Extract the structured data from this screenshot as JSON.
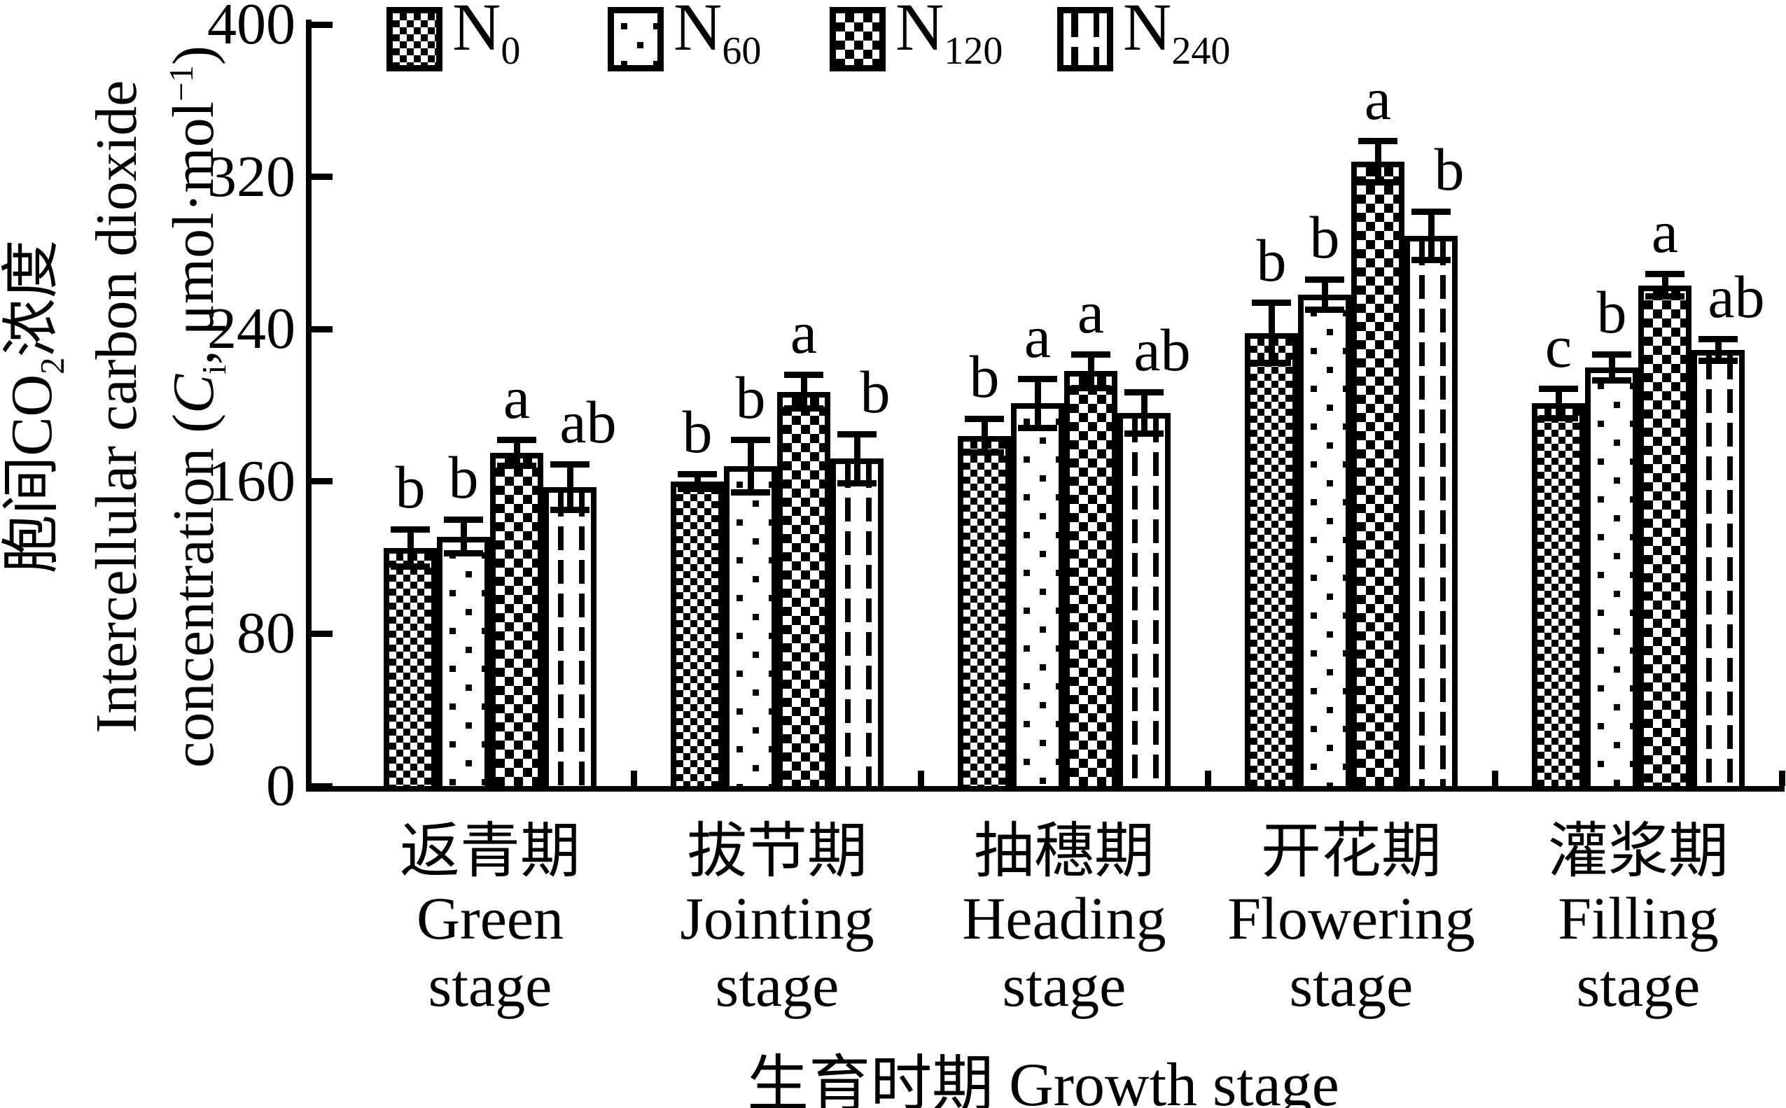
{
  "figure": {
    "bg": "#ffffff",
    "ink": "#000000"
  },
  "legend": {
    "items": [
      {
        "main": "N",
        "sub": "0",
        "pattern": "checker"
      },
      {
        "main": "N",
        "sub": "60",
        "pattern": "dots"
      },
      {
        "main": "N",
        "sub": "120",
        "pattern": "diamond"
      },
      {
        "main": "N",
        "sub": "240",
        "pattern": "dash"
      }
    ]
  },
  "y_axis": {
    "title_zh": {
      "p1": "胞间CO",
      "sub": "2",
      "p2": "浓度"
    },
    "title_en_line1": "Intercellular carbon dioxide",
    "title_en_line2": {
      "p1": "concentration (",
      "sym": "C",
      "sym_sub": "i",
      "p2": ", μmol·mol",
      "sup": "−1",
      "p3": ")"
    },
    "tick_values": [
      0,
      80,
      160,
      240,
      320,
      400
    ]
  },
  "x_axis": {
    "title": "生育时期 Growth stage"
  },
  "chart_data": {
    "type": "bar",
    "title": "",
    "xlabel": "生育时期 Growth stage",
    "ylabel": "胞间CO2浓度 Intercellular carbon dioxide concentration (Ci, μmol·mol−1)",
    "ylim": [
      0,
      400
    ],
    "ytick_step": 80,
    "grid": false,
    "legend_position": "top",
    "error_bars": true,
    "categories": [
      {
        "zh": "返青期",
        "en": "Green",
        "en2": "stage"
      },
      {
        "zh": "拔节期",
        "en": "Jointing",
        "en2": "stage"
      },
      {
        "zh": "抽穗期",
        "en": "Heading",
        "en2": "stage"
      },
      {
        "zh": "开花期",
        "en": "Flowering",
        "en2": "stage"
      },
      {
        "zh": "灌浆期",
        "en": "Filling",
        "en2": "stage"
      }
    ],
    "series": [
      {
        "name": "N0",
        "pattern": "checker",
        "values": [
          125,
          160,
          184,
          238,
          201
        ],
        "errors": [
          10,
          4,
          9,
          16,
          8
        ],
        "letters": [
          "b",
          "b",
          "b",
          "b",
          "c"
        ]
      },
      {
        "name": "N60",
        "pattern": "dots",
        "values": [
          131,
          168,
          201,
          258,
          220
        ],
        "errors": [
          9,
          14,
          13,
          8,
          7
        ],
        "letters": [
          "b",
          "b",
          "a",
          "b",
          "b"
        ]
      },
      {
        "name": "N120",
        "pattern": "diamond",
        "values": [
          175,
          207,
          218,
          328,
          263
        ],
        "errors": [
          7,
          9,
          9,
          11,
          6
        ],
        "letters": [
          "a",
          "a",
          "a",
          "a",
          "a"
        ]
      },
      {
        "name": "N240",
        "pattern": "dash",
        "values": [
          157,
          172,
          196,
          289,
          229
        ],
        "errors": [
          12,
          13,
          11,
          13,
          6
        ],
        "letters": [
          "ab",
          "b",
          "ab",
          "b",
          "ab"
        ]
      }
    ]
  }
}
